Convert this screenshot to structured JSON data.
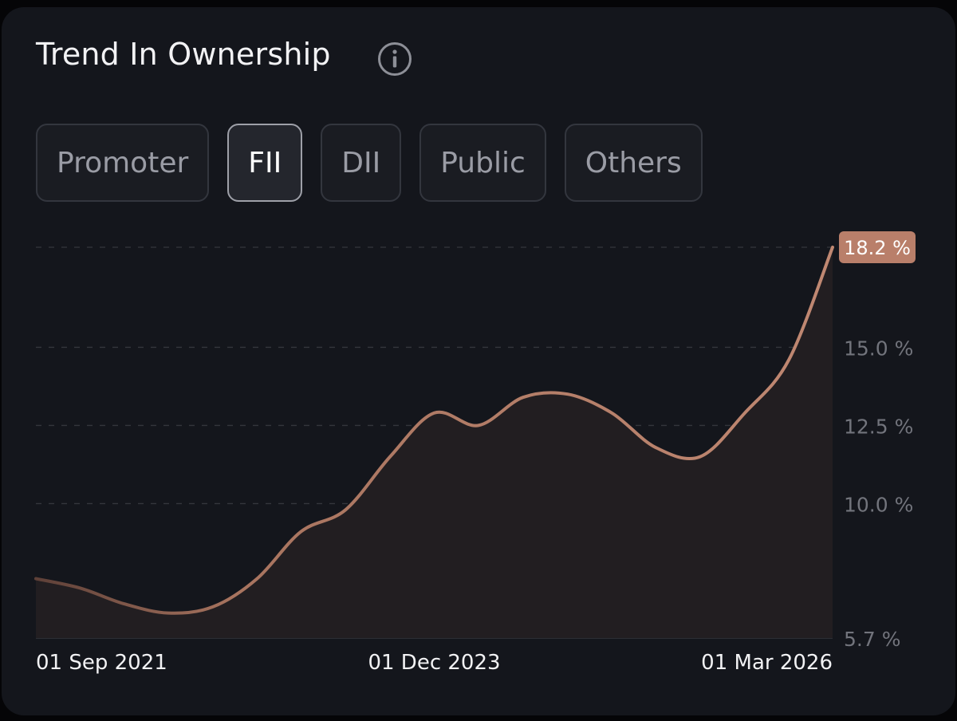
{
  "header": {
    "title": "Trend In Ownership",
    "info_icon": "info-icon"
  },
  "tabs": [
    {
      "label": "Promoter",
      "active": false
    },
    {
      "label": "FII",
      "active": true
    },
    {
      "label": "DII",
      "active": false
    },
    {
      "label": "Public",
      "active": false
    },
    {
      "label": "Others",
      "active": false
    }
  ],
  "colors": {
    "line": "#c08872",
    "badge": "#b97f6a",
    "fill": "#221e21",
    "grid": "#34363c",
    "tick_text": "#72747c",
    "card_background": "#14161c"
  },
  "chart_data": {
    "type": "line",
    "title": "",
    "xlabel": "",
    "ylabel": "",
    "series": [
      {
        "values": [
          {
            "x": "2021-09-01",
            "y": 7.6
          },
          {
            "x": "2021-12-01",
            "y": 7.3
          },
          {
            "x": "2022-03-01",
            "y": 6.8
          },
          {
            "x": "2022-06-01",
            "y": 6.5
          },
          {
            "x": "2022-09-01",
            "y": 6.7
          },
          {
            "x": "2022-12-01",
            "y": 7.6
          },
          {
            "x": "2023-03-01",
            "y": 9.1
          },
          {
            "x": "2023-06-01",
            "y": 9.8
          },
          {
            "x": "2023-09-01",
            "y": 11.5
          },
          {
            "x": "2023-12-01",
            "y": 12.9
          },
          {
            "x": "2024-03-01",
            "y": 12.5
          },
          {
            "x": "2024-06-01",
            "y": 13.4
          },
          {
            "x": "2024-09-01",
            "y": 13.5
          },
          {
            "x": "2024-12-01",
            "y": 12.9
          },
          {
            "x": "2025-03-01",
            "y": 11.8
          },
          {
            "x": "2025-06-01",
            "y": 11.5
          },
          {
            "x": "2025-09-01",
            "y": 12.9
          },
          {
            "x": "2025-12-01",
            "y": 14.6
          },
          {
            "x": "2026-03-01",
            "y": 18.2
          }
        ]
      }
    ],
    "x_ticks": [
      "01 Sep 2021",
      "01 Dec 2023",
      "01 Mar 2026"
    ],
    "y_ticks": [
      {
        "value": 15.0,
        "label": "15.0 %"
      },
      {
        "value": 12.5,
        "label": "12.5 %"
      },
      {
        "value": 10.0,
        "label": "10.0 %"
      },
      {
        "value": 5.7,
        "label": "5.7 %"
      }
    ],
    "last_value_label": "18.2 %",
    "ylim": [
      5.7,
      18.2
    ],
    "grid": true,
    "gridline_values": [
      18.2,
      15.0,
      12.5,
      10.0,
      5.7
    ]
  }
}
